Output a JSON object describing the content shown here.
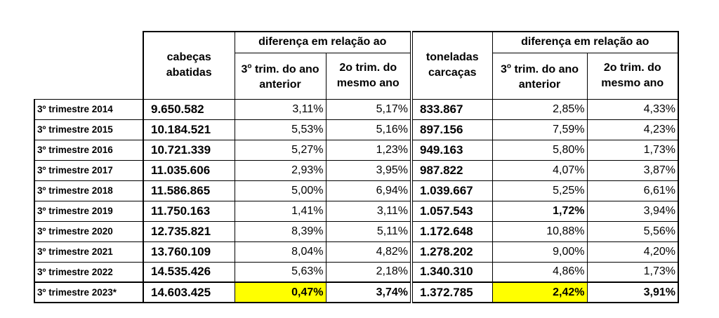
{
  "table": {
    "header": {
      "heads_col": "cabeças abatidas",
      "diff_group_1": "diferença em relação ao",
      "tons_col": "toneladas carcaças",
      "diff_group_2": "diferença em relação ao",
      "prev_year": {
        "pre": "3",
        "sup": "o",
        "rest": "trim. do ano anterior"
      },
      "prev_quarter": "2o trim. do mesmo ano"
    },
    "rows": [
      [
        "3º trimestre 2014",
        "9.650.582",
        "3,11%",
        "5,17%",
        "833.867",
        "2,85%",
        "4,33%"
      ],
      [
        "3º trimestre 2015",
        "10.184.521",
        "5,53%",
        "5,16%",
        "897.156",
        "7,59%",
        "4,23%"
      ],
      [
        "3º trimestre 2016",
        "10.721.339",
        "5,27%",
        "1,23%",
        "949.163",
        "5,80%",
        "1,73%"
      ],
      [
        "3º trimestre 2017",
        "11.035.606",
        "2,93%",
        "3,95%",
        "987.822",
        "4,07%",
        "3,87%"
      ],
      [
        "3º trimestre 2018",
        "11.586.865",
        "5,00%",
        "6,94%",
        "1.039.667",
        "5,25%",
        "6,61%"
      ],
      [
        "3º trimestre 2019",
        "11.750.163",
        "1,41%",
        "3,11%",
        "1.057.543",
        "1,72%",
        "3,94%"
      ],
      [
        "3º trimestre 2020",
        "12.735.821",
        "8,39%",
        "5,11%",
        "1.172.648",
        "10,88%",
        "5,56%"
      ],
      [
        "3º trimestre 2021",
        "13.760.109",
        "8,04%",
        "4,82%",
        "1.278.202",
        "9,00%",
        "4,20%"
      ],
      [
        "3º trimestre 2022",
        "14.535.426",
        "5,63%",
        "2,18%",
        "1.340.310",
        "4,86%",
        "1,73%"
      ],
      [
        "3º trimestre 2023*",
        "14.603.425",
        "0,47%",
        "3,74%",
        "1.372.785",
        "2,42%",
        "3,91%"
      ]
    ]
  }
}
